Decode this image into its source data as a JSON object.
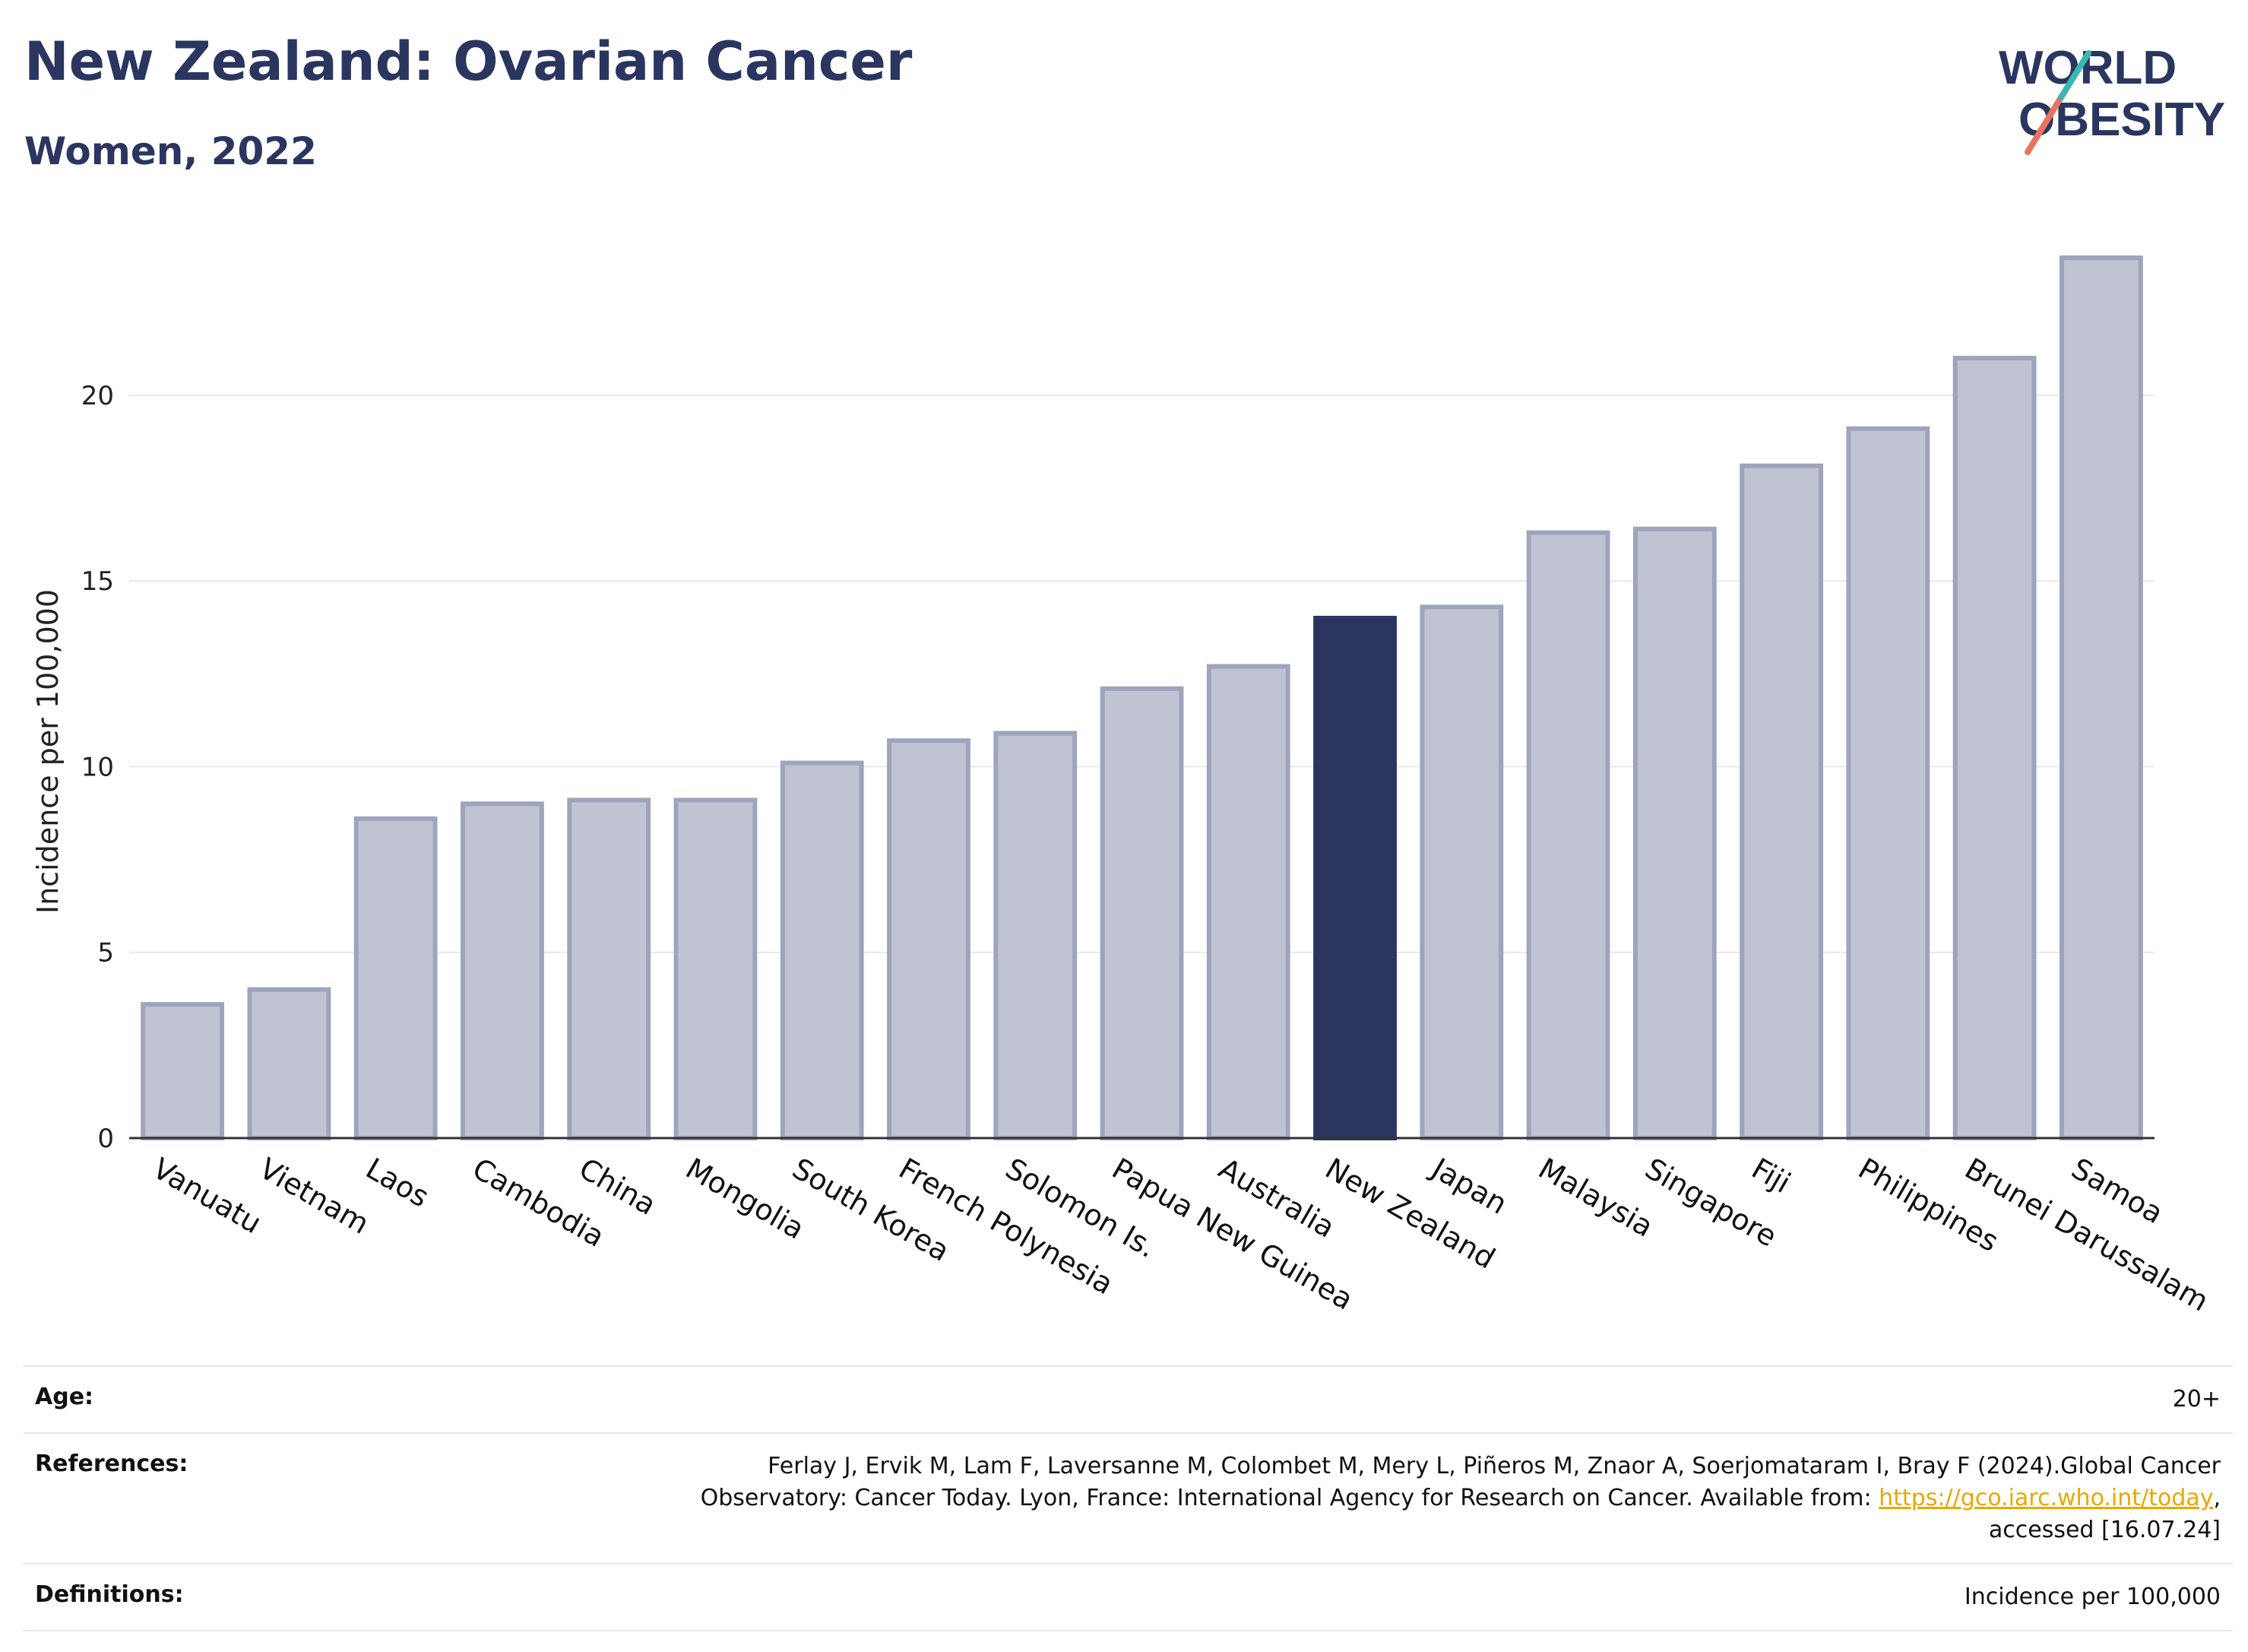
{
  "header": {
    "title": "New Zealand: Ovarian Cancer",
    "subtitle": "Women, 2022"
  },
  "logo": {
    "line1": "WORLD",
    "line2": "OBESITY"
  },
  "colors": {
    "highlight": "#2a3560",
    "bar": "#c0c3d1",
    "bar_border": "#9fa4bd",
    "grid": "#e8e9ef",
    "link": "#e8a800",
    "logo_teal": "#3ab7b0",
    "logo_coral": "#e8735f"
  },
  "chart_data": {
    "type": "bar",
    "categories": [
      "Vanuatu",
      "Vietnam",
      "Laos",
      "Cambodia",
      "China",
      "Mongolia",
      "South Korea",
      "French Polynesia",
      "Solomon Is.",
      "Papua New Guinea",
      "Australia",
      "New Zealand",
      "Japan",
      "Malaysia",
      "Singapore",
      "Fiji",
      "Philippines",
      "Brunei Darussalam",
      "Samoa"
    ],
    "values": [
      3.6,
      4.0,
      8.6,
      9.0,
      9.1,
      9.1,
      10.1,
      10.7,
      10.9,
      12.1,
      12.7,
      14.0,
      14.3,
      16.3,
      16.4,
      18.1,
      19.1,
      21.0,
      23.7
    ],
    "highlight": "New Zealand",
    "ylabel": "Incidence per 100,000",
    "xlabel": "",
    "ylim": [
      0,
      24.5
    ],
    "yticks": [
      0,
      5,
      10,
      15,
      20
    ],
    "grid": true
  },
  "info": {
    "age_label": "Age:",
    "age_value": "20+",
    "references_label": "References:",
    "references_text_1": "Ferlay J, Ervik M, Lam F, Laversanne M, Colombet M, Mery L, Piñeros M, Znaor A, Soerjomataram I, Bray F (2024).Global Cancer",
    "references_text_2": "Observatory: Cancer Today. Lyon, France: International Agency for Research on Cancer. Available from: ",
    "references_link": "https://gco.iarc.who.int/today",
    "references_text_3": ",",
    "references_text_4": "accessed [16.07.24]",
    "definitions_label": "Definitions:",
    "definitions_value": "Incidence per 100,000"
  }
}
